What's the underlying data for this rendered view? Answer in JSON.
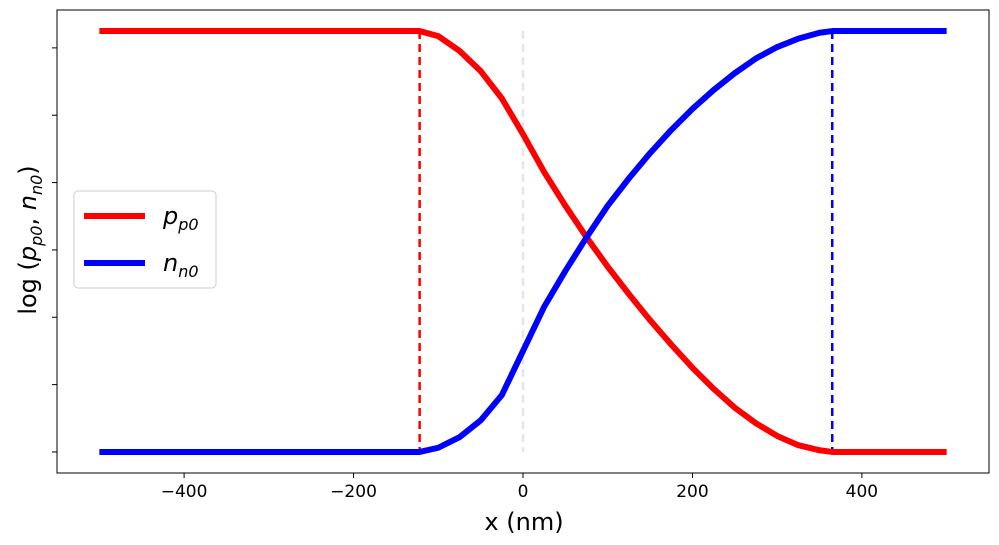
{
  "chart_data": {
    "type": "line",
    "title": "",
    "xlabel": "x (nm)",
    "ylabel": "log (p_p0, n_n0)",
    "ylabel_parts": {
      "prefix": "log (",
      "a_main": "p",
      "a_sub": "p0",
      "sep": ", ",
      "b_main": "n",
      "b_sub": "n0",
      "suffix": ")"
    },
    "xlim": [
      -550,
      550
    ],
    "ylim": [
      -0.05,
      1.05
    ],
    "xticks": [
      -400,
      -200,
      0,
      200,
      400
    ],
    "xtick_labels": [
      "−400",
      "−200",
      "0",
      "200",
      "400"
    ],
    "yticks": [
      0,
      0.16,
      0.32,
      0.48,
      0.64,
      0.8,
      0.96
    ],
    "ytick_labels_visible": false,
    "grid": false,
    "legend_position": "center-left",
    "depletion_edges": {
      "left": -122,
      "right": 365,
      "center": 0
    },
    "series": [
      {
        "name": "p_p0",
        "name_main": "p",
        "name_sub": "p0",
        "color": "#ff0000",
        "x": [
          -500,
          -122,
          -100,
          -75,
          -50,
          -25,
          0,
          25,
          50,
          75,
          100,
          125,
          150,
          175,
          200,
          225,
          250,
          275,
          300,
          325,
          350,
          365,
          500
        ],
        "y": [
          1.0,
          1.0,
          0.988,
          0.953,
          0.905,
          0.84,
          0.755,
          0.665,
          0.585,
          0.51,
          0.44,
          0.375,
          0.313,
          0.255,
          0.2,
          0.15,
          0.105,
          0.068,
          0.038,
          0.016,
          0.004,
          0.0,
          0.0
        ]
      },
      {
        "name": "n_n0",
        "name_main": "n",
        "name_sub": "n0",
        "color": "#0000ff",
        "x": [
          -500,
          -122,
          -100,
          -75,
          -50,
          -25,
          0,
          25,
          50,
          75,
          100,
          125,
          150,
          175,
          200,
          225,
          250,
          275,
          300,
          325,
          350,
          365,
          500
        ],
        "y": [
          0.0,
          0.0,
          0.01,
          0.035,
          0.075,
          0.135,
          0.24,
          0.345,
          0.43,
          0.51,
          0.585,
          0.65,
          0.71,
          0.765,
          0.815,
          0.86,
          0.9,
          0.935,
          0.962,
          0.982,
          0.996,
          1.0,
          1.0
        ]
      }
    ],
    "vlines": [
      {
        "x": -122,
        "color": "#ff0000",
        "style": "dashed"
      },
      {
        "x": 365,
        "color": "#0000ff",
        "style": "dashed"
      },
      {
        "x": 0,
        "color": "#e6e6e6",
        "style": "dashed"
      }
    ]
  }
}
